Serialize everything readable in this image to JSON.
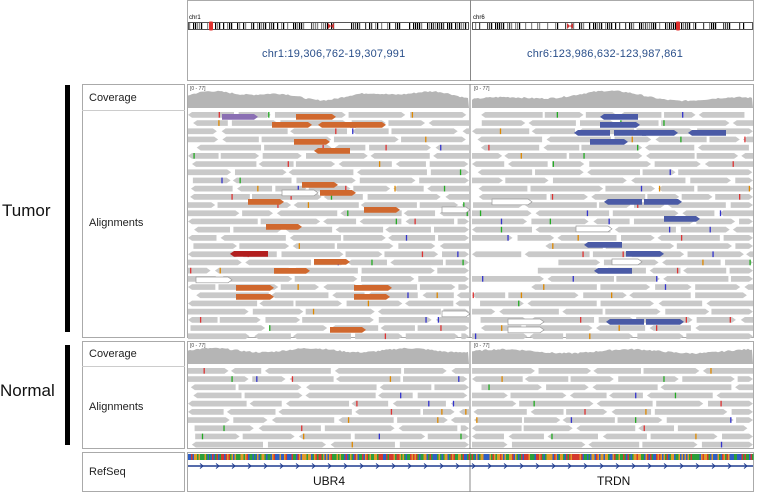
{
  "groups": {
    "tumor": "Tumor",
    "normal": "Normal"
  },
  "tracks": {
    "coverage": "Coverage",
    "alignments": "Alignments",
    "refseq": "RefSeq"
  },
  "header": {
    "chr_left": "chr1",
    "chr_right": "chr6",
    "locus_left": "chr1:19,306,762-19,307,991",
    "locus_right": "chr6:123,986,632-123,987,861"
  },
  "coverage_range": "[0 - 77]",
  "genes": {
    "left": "UBR4",
    "right": "TRDN"
  },
  "colors": {
    "read": "#c9c9c9",
    "coverage": "#b5b5b5",
    "orange_read": "#d0682e",
    "blue_read": "#4a5aa6",
    "purple_read": "#8a6fb3",
    "red_read": "#b21f1f",
    "gene_line": "#1f3b8f"
  }
}
